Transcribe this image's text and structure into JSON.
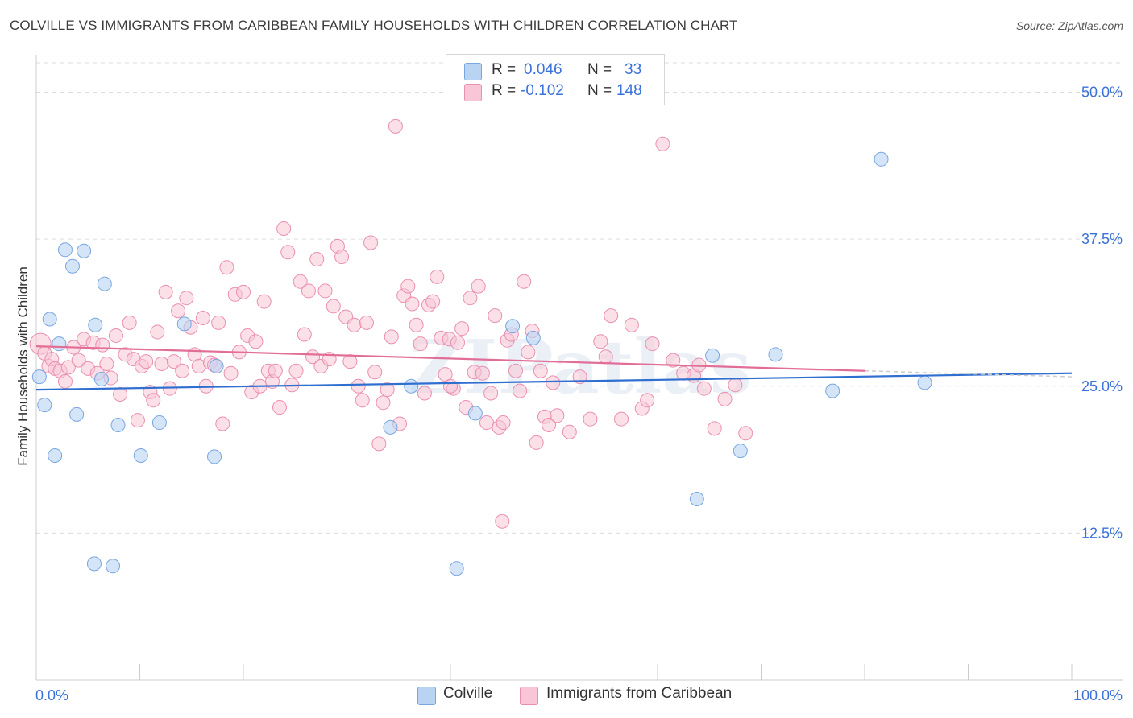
{
  "title": "COLVILLE VS IMMIGRANTS FROM CARIBBEAN FAMILY HOUSEHOLDS WITH CHILDREN CORRELATION CHART",
  "source": "Source: ZipAtlas.com",
  "watermark": "ZIPatlas",
  "legend": {
    "r_label": "R =",
    "n_label": "N =",
    "colville": {
      "r": "0.046",
      "n": "33"
    },
    "caribbean": {
      "r": "-0.102",
      "n": "148"
    }
  },
  "colors": {
    "colville_fill": "#b9d3f3",
    "colville_stroke": "#7aa6e0",
    "colville_line": "#2f6fd0",
    "caribbean_fill": "#f8c6d6",
    "caribbean_stroke": "#ea8fb0",
    "caribbean_line": "#e26d97",
    "tick_label": "#3b72d9",
    "grid": "#dddddd"
  },
  "chart_data": {
    "type": "scatter",
    "title": "COLVILLE VS IMMIGRANTS FROM CARIBBEAN FAMILY HOUSEHOLDS WITH CHILDREN CORRELATION CHART",
    "xlabel": "",
    "ylabel": "Family Households with Children",
    "xlim": [
      0,
      100
    ],
    "ylim": [
      0,
      52.5
    ],
    "x_tick_labels": [
      "0.0%",
      "100.0%"
    ],
    "y_ticks": [
      12.5,
      25.0,
      37.5,
      50.0
    ],
    "y_tick_labels": [
      "12.5%",
      "25.0%",
      "37.5%",
      "50.0%"
    ],
    "grid": "horizontal dashed",
    "legend_position": "top-center and bottom",
    "series": [
      {
        "name": "Colville",
        "trend": {
          "x": [
            0,
            100
          ],
          "y": [
            24.7,
            26.1
          ]
        },
        "points": [
          [
            0.3,
            25.8
          ],
          [
            0.8,
            23.4
          ],
          [
            1.3,
            30.7
          ],
          [
            1.8,
            19.1
          ],
          [
            2.2,
            28.6
          ],
          [
            2.8,
            36.6
          ],
          [
            3.5,
            35.2
          ],
          [
            3.9,
            22.6
          ],
          [
            4.6,
            36.5
          ],
          [
            5.6,
            9.9
          ],
          [
            5.7,
            30.2
          ],
          [
            6.3,
            25.6
          ],
          [
            6.6,
            33.7
          ],
          [
            7.4,
            9.7
          ],
          [
            7.9,
            21.7
          ],
          [
            10.1,
            19.1
          ],
          [
            11.9,
            21.9
          ],
          [
            14.3,
            30.3
          ],
          [
            17.2,
            19.0
          ],
          [
            17.4,
            26.7
          ],
          [
            34.2,
            21.5
          ],
          [
            36.2,
            25.0
          ],
          [
            40.6,
            9.5
          ],
          [
            42.4,
            22.7
          ],
          [
            46.0,
            30.1
          ],
          [
            48.0,
            29.1
          ],
          [
            63.8,
            15.4
          ],
          [
            65.3,
            27.6
          ],
          [
            68.0,
            19.5
          ],
          [
            71.4,
            27.7
          ],
          [
            76.9,
            24.6
          ],
          [
            81.6,
            44.3
          ],
          [
            85.8,
            25.3
          ]
        ]
      },
      {
        "name": "Immigrants from Caribbean",
        "trend": {
          "x": [
            0,
            80
          ],
          "y": [
            28.4,
            26.3
          ]
        },
        "dashed_extension": {
          "x": [
            80,
            100
          ],
          "y": [
            26.3,
            25.8
          ]
        },
        "points": [
          [
            0.4,
            28.6
          ],
          [
            0.8,
            27.8
          ],
          [
            1.2,
            26.7
          ],
          [
            1.5,
            27.3
          ],
          [
            1.8,
            26.5
          ],
          [
            2.3,
            26.3
          ],
          [
            2.8,
            25.4
          ],
          [
            3.1,
            26.6
          ],
          [
            3.6,
            28.3
          ],
          [
            4.1,
            27.2
          ],
          [
            4.6,
            29.0
          ],
          [
            5.0,
            26.5
          ],
          [
            5.5,
            28.7
          ],
          [
            5.9,
            26.1
          ],
          [
            6.4,
            28.5
          ],
          [
            6.8,
            26.9
          ],
          [
            7.2,
            25.7
          ],
          [
            7.7,
            29.3
          ],
          [
            8.1,
            24.3
          ],
          [
            8.6,
            27.7
          ],
          [
            9.0,
            30.4
          ],
          [
            9.4,
            27.3
          ],
          [
            9.8,
            22.1
          ],
          [
            10.2,
            26.7
          ],
          [
            10.6,
            27.1
          ],
          [
            11.0,
            24.5
          ],
          [
            11.3,
            23.8
          ],
          [
            11.7,
            29.6
          ],
          [
            12.1,
            26.9
          ],
          [
            12.5,
            33.0
          ],
          [
            12.9,
            24.8
          ],
          [
            13.3,
            27.1
          ],
          [
            13.7,
            31.4
          ],
          [
            14.1,
            26.3
          ],
          [
            14.5,
            32.5
          ],
          [
            14.9,
            30.0
          ],
          [
            15.3,
            27.7
          ],
          [
            15.7,
            26.7
          ],
          [
            16.1,
            30.8
          ],
          [
            16.4,
            25.0
          ],
          [
            16.8,
            27.0
          ],
          [
            17.2,
            26.8
          ],
          [
            17.6,
            30.4
          ],
          [
            18.0,
            21.8
          ],
          [
            18.4,
            35.1
          ],
          [
            18.8,
            26.1
          ],
          [
            19.2,
            32.8
          ],
          [
            19.6,
            27.9
          ],
          [
            20.0,
            33.0
          ],
          [
            20.4,
            29.3
          ],
          [
            20.8,
            24.5
          ],
          [
            21.2,
            28.8
          ],
          [
            21.6,
            25.0
          ],
          [
            22.0,
            32.2
          ],
          [
            22.4,
            26.3
          ],
          [
            22.8,
            25.4
          ],
          [
            23.1,
            26.3
          ],
          [
            23.5,
            23.2
          ],
          [
            23.9,
            38.4
          ],
          [
            24.3,
            36.4
          ],
          [
            24.7,
            25.1
          ],
          [
            25.1,
            26.3
          ],
          [
            25.5,
            33.9
          ],
          [
            25.9,
            29.4
          ],
          [
            26.3,
            33.1
          ],
          [
            26.7,
            27.5
          ],
          [
            27.1,
            35.8
          ],
          [
            27.5,
            26.7
          ],
          [
            27.9,
            33.1
          ],
          [
            28.3,
            27.3
          ],
          [
            28.7,
            31.8
          ],
          [
            29.1,
            36.9
          ],
          [
            29.5,
            36.0
          ],
          [
            29.9,
            30.9
          ],
          [
            30.3,
            27.1
          ],
          [
            30.7,
            30.2
          ],
          [
            31.1,
            25.0
          ],
          [
            31.5,
            23.8
          ],
          [
            31.9,
            30.4
          ],
          [
            32.3,
            37.2
          ],
          [
            32.7,
            26.2
          ],
          [
            33.1,
            20.1
          ],
          [
            33.5,
            23.6
          ],
          [
            33.9,
            24.7
          ],
          [
            34.3,
            29.2
          ],
          [
            34.7,
            47.1
          ],
          [
            35.1,
            21.8
          ],
          [
            35.5,
            32.7
          ],
          [
            35.9,
            33.5
          ],
          [
            36.3,
            32.0
          ],
          [
            36.7,
            30.2
          ],
          [
            37.1,
            28.6
          ],
          [
            37.5,
            24.4
          ],
          [
            37.9,
            31.9
          ],
          [
            38.3,
            32.2
          ],
          [
            38.7,
            34.3
          ],
          [
            39.1,
            29.1
          ],
          [
            39.5,
            26.0
          ],
          [
            39.9,
            29.0
          ],
          [
            40.3,
            24.8
          ],
          [
            40.7,
            28.7
          ],
          [
            41.1,
            29.9
          ],
          [
            41.5,
            23.2
          ],
          [
            41.9,
            32.5
          ],
          [
            42.3,
            26.2
          ],
          [
            42.7,
            33.5
          ],
          [
            43.1,
            26.1
          ],
          [
            43.5,
            21.9
          ],
          [
            43.9,
            24.4
          ],
          [
            44.3,
            31.0
          ],
          [
            44.7,
            21.5
          ],
          [
            45.1,
            21.9
          ],
          [
            45.5,
            28.9
          ],
          [
            45.9,
            29.4
          ],
          [
            46.3,
            26.3
          ],
          [
            46.7,
            24.6
          ],
          [
            47.1,
            33.9
          ],
          [
            47.5,
            27.9
          ],
          [
            47.9,
            29.7
          ],
          [
            48.3,
            20.2
          ],
          [
            48.7,
            26.3
          ],
          [
            49.1,
            22.4
          ],
          [
            49.5,
            21.7
          ],
          [
            49.9,
            25.3
          ],
          [
            50.3,
            22.5
          ],
          [
            51.5,
            21.1
          ],
          [
            52.5,
            25.8
          ],
          [
            53.5,
            22.2
          ],
          [
            54.5,
            28.8
          ],
          [
            55.5,
            31.0
          ],
          [
            56.5,
            22.2
          ],
          [
            57.5,
            30.2
          ],
          [
            58.5,
            23.1
          ],
          [
            59.5,
            28.6
          ],
          [
            60.5,
            45.6
          ],
          [
            61.5,
            27.2
          ],
          [
            62.5,
            26.1
          ],
          [
            63.5,
            25.9
          ],
          [
            64.5,
            24.8
          ],
          [
            65.5,
            21.4
          ],
          [
            66.5,
            23.9
          ],
          [
            67.5,
            25.1
          ],
          [
            68.5,
            21.0
          ],
          [
            55.0,
            27.5
          ],
          [
            59.0,
            23.8
          ],
          [
            64.0,
            26.8
          ],
          [
            45.0,
            13.5
          ],
          [
            40.0,
            25.0
          ]
        ]
      }
    ]
  }
}
